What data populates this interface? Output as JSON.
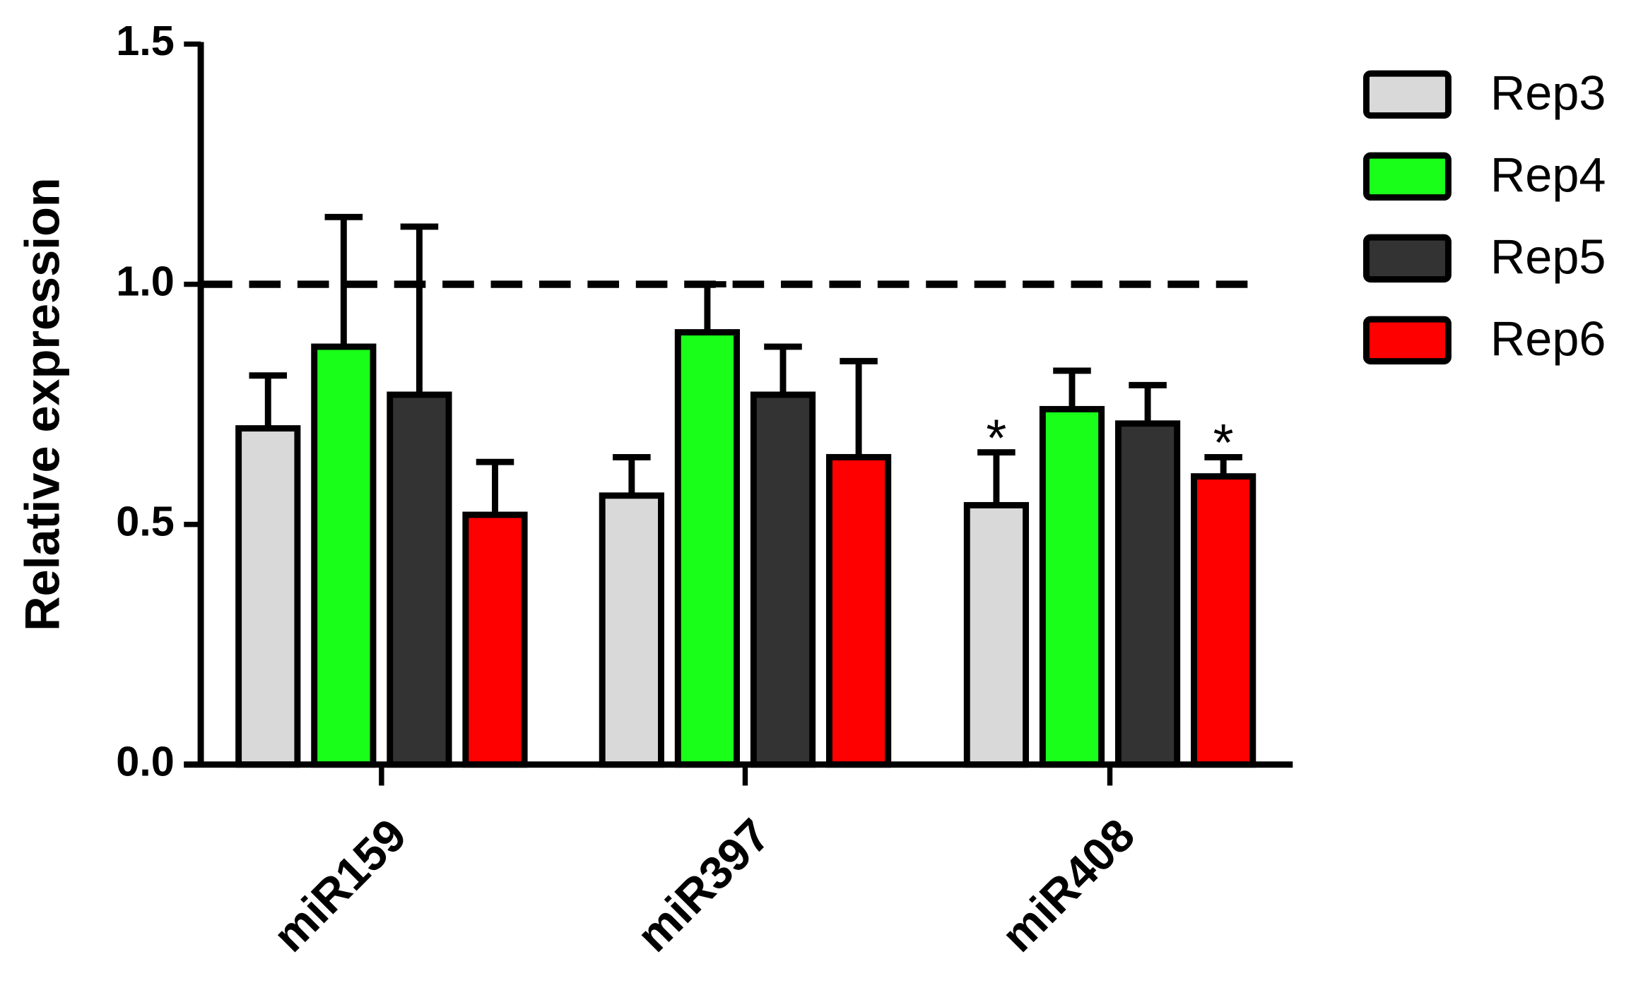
{
  "chart_data": {
    "type": "bar",
    "y_label": "Relative expression",
    "categories": [
      "miR159",
      "miR397",
      "miR408"
    ],
    "series": [
      {
        "name": "Rep3",
        "color": "#d9d9d9",
        "values": [
          0.7,
          0.56,
          0.54
        ],
        "errors": [
          0.11,
          0.08,
          0.11
        ],
        "value_annotations": [
          null,
          null,
          "*"
        ]
      },
      {
        "name": "Rep4",
        "color": "#1aff1a",
        "values": [
          0.87,
          0.9,
          0.74
        ],
        "errors": [
          0.27,
          0.1,
          0.08
        ],
        "value_annotations": [
          null,
          null,
          null
        ]
      },
      {
        "name": "Rep5",
        "color": "#333333",
        "values": [
          0.77,
          0.77,
          0.71
        ],
        "errors": [
          0.35,
          0.1,
          0.08
        ],
        "value_annotations": [
          null,
          null,
          null
        ]
      },
      {
        "name": "Rep6",
        "color": "#ff0000",
        "values": [
          0.52,
          0.64,
          0.6
        ],
        "errors": [
          0.11,
          0.2,
          0.04
        ],
        "value_annotations": [
          null,
          null,
          "*"
        ]
      }
    ],
    "ylim": [
      0,
      1.5
    ],
    "yticks": [
      {
        "value": 0,
        "label": "0.0"
      },
      0.5,
      {
        "value": 1,
        "label": "1.0"
      },
      1.5
    ],
    "reference_line": 1,
    "legend": "right"
  }
}
